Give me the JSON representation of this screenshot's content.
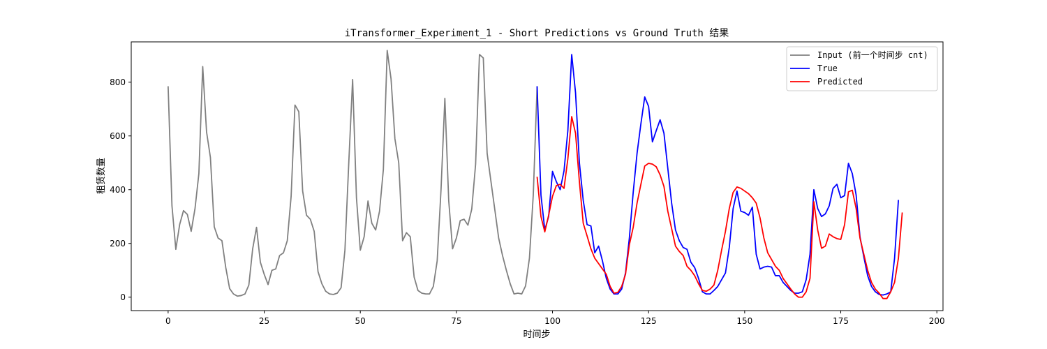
{
  "chart_data": {
    "type": "line",
    "title": "iTransformer_Experiment_1 - Short Predictions vs Ground Truth 结果",
    "xlabel": "时间步",
    "ylabel": "租赁数量",
    "xlim": [
      -9.6,
      201.6
    ],
    "ylim": [
      -50,
      950
    ],
    "xticks": [
      0,
      25,
      50,
      75,
      100,
      125,
      150,
      175,
      200
    ],
    "yticks": [
      0,
      200,
      400,
      600,
      800
    ],
    "grid": false,
    "legend_position": "top-right",
    "series": [
      {
        "name": "Input (前一个时间步 cnt)",
        "color": "#808080",
        "x_start": 0,
        "values": [
          785,
          340,
          178,
          270,
          322,
          308,
          245,
          330,
          460,
          858,
          615,
          520,
          262,
          220,
          210,
          110,
          32,
          12,
          4,
          6,
          12,
          45,
          180,
          260,
          130,
          85,
          47,
          100,
          105,
          155,
          165,
          210,
          375,
          715,
          690,
          395,
          305,
          290,
          245,
          95,
          50,
          22,
          12,
          10,
          15,
          35,
          175,
          500,
          810,
          370,
          175,
          225,
          358,
          275,
          250,
          320,
          475,
          918,
          812,
          590,
          500,
          210,
          240,
          225,
          75,
          25,
          15,
          12,
          12,
          40,
          135,
          400,
          740,
          360,
          180,
          220,
          285,
          290,
          268,
          328,
          495,
          903,
          890,
          535,
          430,
          325,
          220,
          155,
          100,
          50,
          12,
          15,
          12,
          42,
          145,
          380,
          785
        ]
      },
      {
        "name": "True",
        "color": "#0000ff",
        "x_start": 96,
        "values": [
          785,
          380,
          250,
          300,
          468,
          430,
          400,
          470,
          620,
          903,
          760,
          500,
          360,
          270,
          265,
          165,
          190,
          135,
          70,
          30,
          12,
          12,
          30,
          90,
          220,
          390,
          535,
          645,
          745,
          710,
          578,
          620,
          660,
          610,
          480,
          350,
          250,
          210,
          185,
          178,
          130,
          110,
          70,
          20,
          12,
          12,
          25,
          40,
          65,
          90,
          185,
          330,
          395,
          320,
          315,
          305,
          335,
          160,
          105,
          112,
          115,
          112,
          80,
          80,
          55,
          40,
          25,
          15,
          15,
          20,
          65,
          160,
          400,
          330,
          300,
          310,
          340,
          405,
          420,
          370,
          378,
          498,
          460,
          380,
          225,
          150,
          80,
          40,
          20,
          10,
          8,
          12,
          20,
          145,
          362
        ]
      },
      {
        "name": "Predicted",
        "color": "#ff0000",
        "x_start": 96,
        "values": [
          448,
          300,
          243,
          305,
          375,
          415,
          420,
          405,
          515,
          672,
          610,
          430,
          275,
          228,
          180,
          145,
          125,
          105,
          85,
          40,
          15,
          18,
          40,
          85,
          195,
          260,
          350,
          420,
          488,
          498,
          495,
          485,
          455,
          412,
          320,
          255,
          190,
          170,
          155,
          115,
          100,
          80,
          50,
          25,
          22,
          30,
          45,
          100,
          175,
          245,
          330,
          390,
          410,
          405,
          395,
          385,
          370,
          350,
          295,
          220,
          165,
          140,
          115,
          100,
          70,
          50,
          30,
          12,
          0,
          0,
          20,
          70,
          355,
          250,
          182,
          190,
          235,
          225,
          218,
          215,
          270,
          392,
          398,
          330,
          220,
          160,
          100,
          55,
          30,
          15,
          -5,
          -5,
          20,
          55,
          145,
          315
        ]
      }
    ]
  }
}
